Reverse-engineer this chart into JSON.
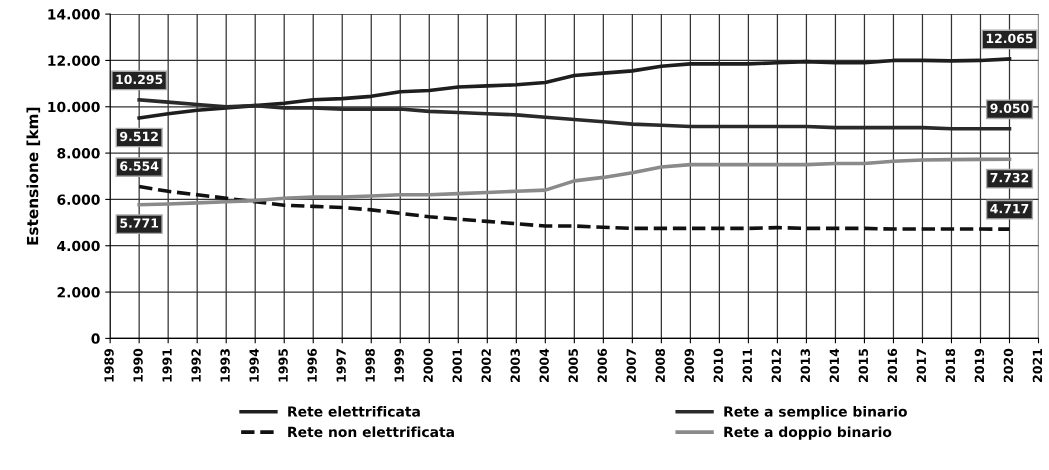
{
  "chart_data": {
    "type": "line",
    "ylabel": "Estensione [km]",
    "x": [
      1990,
      1991,
      1992,
      1993,
      1994,
      1995,
      1996,
      1997,
      1998,
      1999,
      2000,
      2001,
      2002,
      2003,
      2004,
      2005,
      2006,
      2007,
      2008,
      2009,
      2010,
      2011,
      2012,
      2013,
      2014,
      2015,
      2016,
      2017,
      2018,
      2019,
      2020
    ],
    "xlim": [
      1989,
      2021
    ],
    "xticks": [
      1989,
      1990,
      1991,
      1992,
      1993,
      1994,
      1995,
      1996,
      1997,
      1998,
      1999,
      2000,
      2001,
      2002,
      2003,
      2004,
      2005,
      2006,
      2007,
      2008,
      2009,
      2010,
      2011,
      2012,
      2013,
      2014,
      2015,
      2016,
      2017,
      2018,
      2019,
      2020,
      2021
    ],
    "ylim": [
      0,
      14000
    ],
    "yticks": [
      {
        "value": 0,
        "label": "0"
      },
      {
        "value": 2000,
        "label": "2.000"
      },
      {
        "value": 4000,
        "label": "4.000"
      },
      {
        "value": 6000,
        "label": "6.000"
      },
      {
        "value": 8000,
        "label": "8.000"
      },
      {
        "value": 10000,
        "label": "10.000"
      },
      {
        "value": 12000,
        "label": "12.000"
      },
      {
        "value": 14000,
        "label": "14.000"
      }
    ],
    "grid": true,
    "legend": "bottom",
    "marker": "none",
    "series": [
      {
        "name": "Rete elettrificata",
        "color": "#1e1e1e",
        "line_style": "solid",
        "values": [
          9512,
          9700,
          9850,
          9950,
          10050,
          10150,
          10300,
          10350,
          10450,
          10650,
          10700,
          10850,
          10900,
          10950,
          11050,
          11350,
          11450,
          11550,
          11750,
          11850,
          11850,
          11850,
          11900,
          11950,
          11900,
          11900,
          12000,
          12000,
          11980,
          12000,
          12065
        ],
        "value_labels": [
          "9.512",
          null,
          null,
          null,
          null,
          null,
          null,
          null,
          null,
          null,
          null,
          null,
          null,
          null,
          null,
          null,
          null,
          null,
          null,
          null,
          null,
          null,
          null,
          null,
          null,
          null,
          null,
          null,
          null,
          null,
          "12.065"
        ]
      },
      {
        "name": "Rete a semplice binario",
        "color": "#2a2a2a",
        "line_style": "solid",
        "values": [
          10295,
          10200,
          10100,
          10000,
          10050,
          9950,
          9950,
          9900,
          9900,
          9900,
          9800,
          9750,
          9700,
          9650,
          9550,
          9450,
          9350,
          9250,
          9200,
          9150,
          9150,
          9150,
          9150,
          9150,
          9100,
          9100,
          9100,
          9100,
          9050,
          9050,
          9050
        ],
        "value_labels": [
          "10.295",
          null,
          null,
          null,
          null,
          null,
          null,
          null,
          null,
          null,
          null,
          null,
          null,
          null,
          null,
          null,
          null,
          null,
          null,
          null,
          null,
          null,
          null,
          null,
          null,
          null,
          null,
          null,
          null,
          null,
          "9.050"
        ]
      },
      {
        "name": "Rete non elettrificata",
        "color": "#111111",
        "line_style": "dashed",
        "values": [
          6554,
          6350,
          6200,
          6050,
          5900,
          5750,
          5700,
          5650,
          5550,
          5400,
          5250,
          5150,
          5050,
          4950,
          4850,
          4850,
          4800,
          4750,
          4750,
          4750,
          4750,
          4750,
          4780,
          4750,
          4750,
          4750,
          4720,
          4720,
          4720,
          4720,
          4717
        ],
        "value_labels": [
          "6.554",
          null,
          null,
          null,
          null,
          null,
          null,
          null,
          null,
          null,
          null,
          null,
          null,
          null,
          null,
          null,
          null,
          null,
          null,
          null,
          null,
          null,
          null,
          null,
          null,
          null,
          null,
          null,
          null,
          null,
          "4.717"
        ]
      },
      {
        "name": "Rete a doppio binario",
        "color": "#8a8a8a",
        "line_style": "solid",
        "values": [
          5771,
          5800,
          5850,
          5900,
          5950,
          6050,
          6100,
          6100,
          6150,
          6200,
          6200,
          6250,
          6300,
          6350,
          6400,
          6800,
          6950,
          7150,
          7400,
          7500,
          7500,
          7500,
          7500,
          7500,
          7550,
          7550,
          7650,
          7700,
          7720,
          7730,
          7732
        ],
        "value_labels": [
          "5.771",
          null,
          null,
          null,
          null,
          null,
          null,
          null,
          null,
          null,
          null,
          null,
          null,
          null,
          null,
          null,
          null,
          null,
          null,
          null,
          null,
          null,
          null,
          null,
          null,
          null,
          null,
          null,
          null,
          null,
          "7.732"
        ]
      }
    ]
  }
}
